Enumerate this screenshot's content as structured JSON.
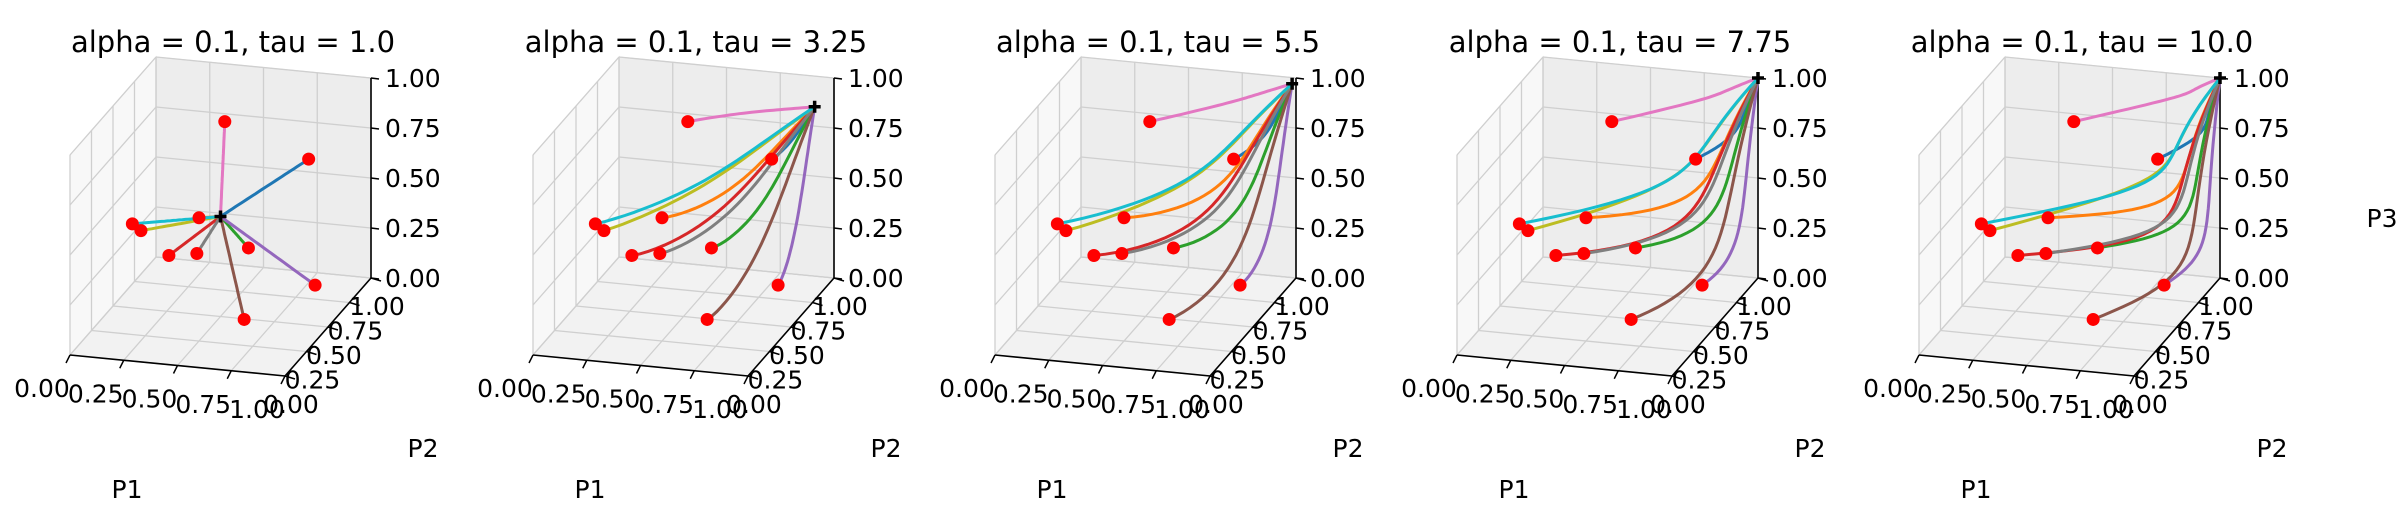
{
  "chart_data": [
    {
      "type": "line",
      "title": "alpha = 0.1, tau = 1.0",
      "xlabel": "P1",
      "ylabel": "P2",
      "zlabel": "",
      "xlim": [
        0,
        1
      ],
      "ylim": [
        0,
        1
      ],
      "zlim": [
        0,
        1
      ],
      "grid": true,
      "xticks": [
        "0.00",
        "0.25",
        "0.50",
        "0.75",
        "1.00"
      ],
      "yticks": [
        "0.00",
        "0.25",
        "0.50",
        "0.75",
        "1.00"
      ],
      "zticks": [
        "0.00",
        "0.25",
        "0.50",
        "0.75",
        "1.00"
      ],
      "end_point": [
        0.5,
        0.5,
        0.5
      ]
    },
    {
      "type": "line",
      "title": "alpha = 0.1, tau = 3.25",
      "xlabel": "P1",
      "ylabel": "P2",
      "zlabel": "",
      "xlim": [
        0,
        1
      ],
      "ylim": [
        0,
        1
      ],
      "zlim": [
        0,
        1
      ],
      "grid": true,
      "xticks": [
        "0.00",
        "0.25",
        "0.50",
        "0.75",
        "1.00"
      ],
      "yticks": [
        "0.00",
        "0.25",
        "0.50",
        "0.75",
        "1.00"
      ],
      "zticks": [
        "0.00",
        "0.25",
        "0.50",
        "0.75",
        "1.00"
      ],
      "end_point": [
        0.95,
        0.9,
        0.9
      ]
    },
    {
      "type": "line",
      "title": "alpha = 0.1, tau = 5.5",
      "xlabel": "P1",
      "ylabel": "P2",
      "zlabel": "",
      "xlim": [
        0,
        1
      ],
      "ylim": [
        0,
        1
      ],
      "zlim": [
        0,
        1
      ],
      "grid": true,
      "xticks": [
        "0.00",
        "0.25",
        "0.50",
        "0.75",
        "1.00"
      ],
      "yticks": [
        "0.00",
        "0.25",
        "0.50",
        "0.75",
        "1.00"
      ],
      "zticks": [
        "0.00",
        "0.25",
        "0.50",
        "0.75",
        "1.00"
      ],
      "end_point": [
        0.99,
        0.98,
        0.98
      ]
    },
    {
      "type": "line",
      "title": "alpha = 0.1, tau = 7.75",
      "xlabel": "P1",
      "ylabel": "P2",
      "zlabel": "",
      "xlim": [
        0,
        1
      ],
      "ylim": [
        0,
        1
      ],
      "zlim": [
        0,
        1
      ],
      "grid": true,
      "xticks": [
        "0.00",
        "0.25",
        "0.50",
        "0.75",
        "1.00"
      ],
      "yticks": [
        "0.00",
        "0.25",
        "0.50",
        "0.75",
        "1.00"
      ],
      "zticks": [
        "0.00",
        "0.25",
        "0.50",
        "0.75",
        "1.00"
      ],
      "end_point": [
        1.0,
        1.0,
        1.0
      ]
    },
    {
      "type": "line",
      "title": "alpha = 0.1, tau = 10.0",
      "xlabel": "P1",
      "ylabel": "P2",
      "zlabel": "P3",
      "xlim": [
        0,
        1
      ],
      "ylim": [
        0,
        1
      ],
      "zlim": [
        0,
        1
      ],
      "grid": true,
      "xticks": [
        "0.00",
        "0.25",
        "0.50",
        "0.75",
        "1.00"
      ],
      "yticks": [
        "0.00",
        "0.25",
        "0.50",
        "0.75",
        "1.00"
      ],
      "zticks": [
        "0.00",
        "0.25",
        "0.50",
        "0.75",
        "1.00"
      ],
      "end_point": [
        1.0,
        1.0,
        1.0
      ]
    }
  ],
  "start_points": [
    [
      0.85,
      0.65,
      0.75
    ],
    [
      0.3,
      0.75,
      0.35
    ],
    [
      0.55,
      0.7,
      0.25
    ],
    [
      0.2,
      0.65,
      0.2
    ],
    [
      0.9,
      0.6,
      0.15
    ],
    [
      0.65,
      0.4,
      0.05
    ],
    [
      0.5,
      0.55,
      0.95
    ],
    [
      0.35,
      0.6,
      0.25
    ],
    [
      0.25,
      0.2,
      0.55
    ],
    [
      0.15,
      0.35,
      0.5
    ]
  ],
  "colors": {
    "series": [
      "#1f77b4",
      "#ff7f0e",
      "#2ca02c",
      "#d62728",
      "#9467bd",
      "#8c564b",
      "#e377c2",
      "#7f7f7f",
      "#bcbd22",
      "#17becf"
    ],
    "start_marker": "#ff0000",
    "end_marker": "#000000"
  }
}
